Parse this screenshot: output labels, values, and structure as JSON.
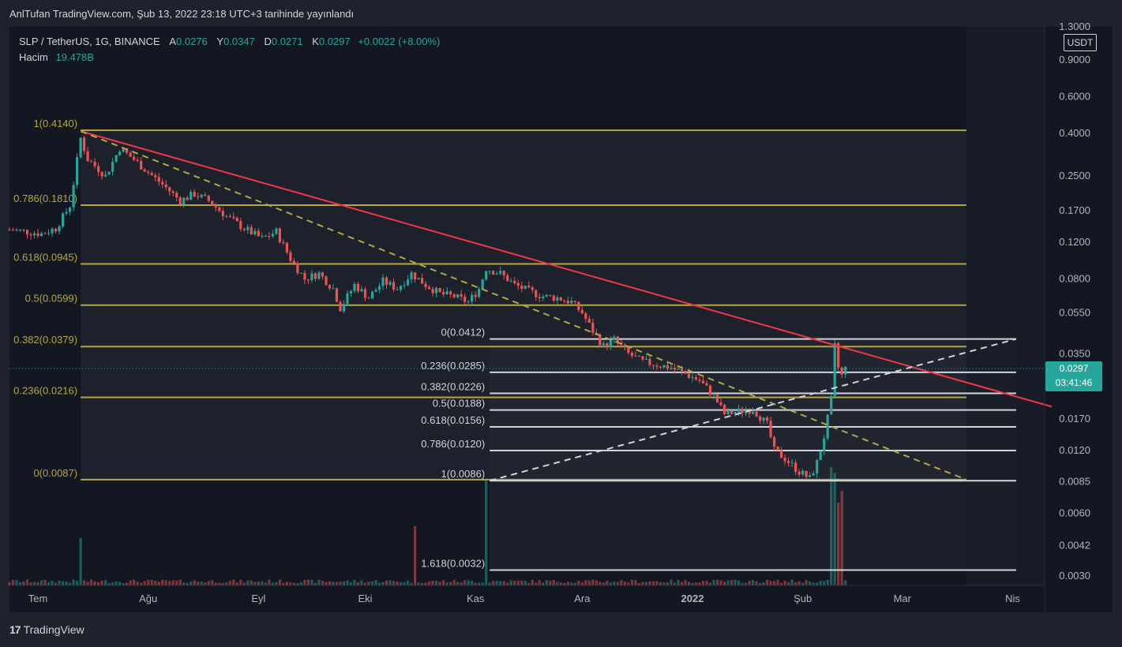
{
  "header": {
    "publication": "AnlTufan TradingView.com, Şub 13, 2022 23:18 UTC+3 tarihinde yayınlandı"
  },
  "legend": {
    "symbol": "SLP / TetherUS, 1G, BINANCE",
    "open_label": "A",
    "open": "0.0276",
    "high_label": "Y",
    "high": "0.0347",
    "low_label": "D",
    "low": "0.0271",
    "close_label": "K",
    "close": "0.0297",
    "change": "+0.0022 (+8.00%)",
    "volume_label": "Hacim",
    "volume": "19.478B"
  },
  "price_axis": {
    "currency": "USDT",
    "last_price": "0.0297",
    "countdown": "03:41:46"
  },
  "brand": {
    "logo": "17",
    "name": "TradingView"
  },
  "colors": {
    "up": "#26a69a",
    "down": "#ef5350",
    "fib_major": "#b5a642",
    "fib_minor": "#d1d4dc",
    "trend": "#f23645"
  },
  "chart_data": {
    "type": "candlestick",
    "scale": "log",
    "ylim": [
      0.0027,
      1.3
    ],
    "xlim": [
      "2021-06-23",
      "2022-04-10"
    ],
    "y_ticks": [
      "1.3000",
      "0.9000",
      "0.6000",
      "0.4000",
      "0.2500",
      "0.1700",
      "0.1200",
      "0.0800",
      "0.0550",
      "0.0350",
      "0.0250",
      "0.0170",
      "0.0120",
      "0.0085",
      "0.0060",
      "0.0042",
      "0.0030"
    ],
    "x_ticks": [
      {
        "label": "Tem",
        "date": "2021-07-01"
      },
      {
        "label": "Ağu",
        "date": "2021-08-01"
      },
      {
        "label": "Eyl",
        "date": "2021-09-01"
      },
      {
        "label": "Eki",
        "date": "2021-10-01"
      },
      {
        "label": "Kas",
        "date": "2021-11-01"
      },
      {
        "label": "Ara",
        "date": "2021-12-01"
      },
      {
        "label": "2022",
        "date": "2022-01-01"
      },
      {
        "label": "Şub",
        "date": "2022-02-01"
      },
      {
        "label": "Mar",
        "date": "2022-03-01"
      },
      {
        "label": "Nis",
        "date": "2022-04-01"
      }
    ],
    "price_path": [
      [
        "2021-06-23",
        0.138
      ],
      [
        "2021-06-28",
        0.135
      ],
      [
        "2021-07-02",
        0.132
      ],
      [
        "2021-07-06",
        0.14
      ],
      [
        "2021-07-10",
        0.18
      ],
      [
        "2021-07-13",
        0.38
      ],
      [
        "2021-07-15",
        0.3
      ],
      [
        "2021-07-18",
        0.27
      ],
      [
        "2021-07-20",
        0.25
      ],
      [
        "2021-07-24",
        0.34
      ],
      [
        "2021-07-28",
        0.3
      ],
      [
        "2021-08-01",
        0.26
      ],
      [
        "2021-08-06",
        0.22
      ],
      [
        "2021-08-10",
        0.19
      ],
      [
        "2021-08-14",
        0.205
      ],
      [
        "2021-08-18",
        0.19
      ],
      [
        "2021-08-23",
        0.16
      ],
      [
        "2021-08-28",
        0.14
      ],
      [
        "2021-09-02",
        0.125
      ],
      [
        "2021-09-06",
        0.135
      ],
      [
        "2021-09-10",
        0.1
      ],
      [
        "2021-09-14",
        0.08
      ],
      [
        "2021-09-18",
        0.085
      ],
      [
        "2021-09-22",
        0.072
      ],
      [
        "2021-09-24",
        0.058
      ],
      [
        "2021-09-28",
        0.075
      ],
      [
        "2021-10-02",
        0.065
      ],
      [
        "2021-10-06",
        0.078
      ],
      [
        "2021-10-10",
        0.072
      ],
      [
        "2021-10-14",
        0.085
      ],
      [
        "2021-10-18",
        0.075
      ],
      [
        "2021-10-22",
        0.068
      ],
      [
        "2021-10-26",
        0.066
      ],
      [
        "2021-10-30",
        0.062
      ],
      [
        "2021-11-02",
        0.072
      ],
      [
        "2021-11-04",
        0.09
      ],
      [
        "2021-11-08",
        0.085
      ],
      [
        "2021-11-12",
        0.075
      ],
      [
        "2021-11-16",
        0.07
      ],
      [
        "2021-11-20",
        0.066
      ],
      [
        "2021-11-24",
        0.065
      ],
      [
        "2021-11-28",
        0.062
      ],
      [
        "2021-12-01",
        0.055
      ],
      [
        "2021-12-04",
        0.045
      ],
      [
        "2021-12-07",
        0.038
      ],
      [
        "2021-12-10",
        0.041
      ],
      [
        "2021-12-14",
        0.035
      ],
      [
        "2021-12-18",
        0.032
      ],
      [
        "2021-12-22",
        0.031
      ],
      [
        "2021-12-26",
        0.03
      ],
      [
        "2021-12-30",
        0.028
      ],
      [
        "2022-01-03",
        0.026
      ],
      [
        "2022-01-07",
        0.022
      ],
      [
        "2022-01-10",
        0.018
      ],
      [
        "2022-01-14",
        0.0185
      ],
      [
        "2022-01-18",
        0.019
      ],
      [
        "2022-01-22",
        0.016
      ],
      [
        "2022-01-24",
        0.012
      ],
      [
        "2022-01-27",
        0.011
      ],
      [
        "2022-01-31",
        0.0095
      ],
      [
        "2022-02-03",
        0.0088
      ],
      [
        "2022-02-05",
        0.0105
      ],
      [
        "2022-02-07",
        0.014
      ],
      [
        "2022-02-09",
        0.021
      ],
      [
        "2022-02-10",
        0.038
      ],
      [
        "2022-02-11",
        0.03
      ],
      [
        "2022-02-12",
        0.0275
      ],
      [
        "2022-02-13",
        0.0297
      ]
    ],
    "volume_spikes": [
      [
        "2021-07-13",
        0.4
      ],
      [
        "2021-10-15",
        0.5
      ],
      [
        "2021-11-04",
        0.9
      ],
      [
        "2022-02-09",
        1.0
      ],
      [
        "2022-02-10",
        0.95
      ],
      [
        "2022-02-11",
        0.7
      ],
      [
        "2022-02-12",
        0.8
      ]
    ],
    "fib_major": {
      "start": "2021-07-13",
      "end": "2022-03-19",
      "levels": [
        {
          "label": "1(0.4140)",
          "price": 0.414
        },
        {
          "label": "0.786(0.1810)",
          "price": 0.181
        },
        {
          "label": "0.618(0.0945)",
          "price": 0.0945
        },
        {
          "label": "0.5(0.0599)",
          "price": 0.0599
        },
        {
          "label": "0.382(0.0379)",
          "price": 0.0379
        },
        {
          "label": "0.236(0.0216)",
          "price": 0.0216
        },
        {
          "label": "0(0.0087)",
          "price": 0.0087
        }
      ]
    },
    "fib_minor": {
      "start": "2021-11-05",
      "end": "2022-04-02",
      "levels": [
        {
          "label": "0(0.0412)",
          "price": 0.0412
        },
        {
          "label": "0.236(0.0285)",
          "price": 0.0285
        },
        {
          "label": "0.382(0.0226)",
          "price": 0.0226
        },
        {
          "label": "0.5(0.0188)",
          "price": 0.0188
        },
        {
          "label": "0.618(0.0156)",
          "price": 0.0156
        },
        {
          "label": "0.786(0.0120)",
          "price": 0.012
        },
        {
          "label": "1(0.0086)",
          "price": 0.0086
        },
        {
          "label": "1.618(0.0032)",
          "price": 0.0032
        }
      ]
    },
    "trendlines": [
      {
        "style": "solid",
        "color": "#f23645",
        "from": [
          "2021-07-13",
          0.41
        ],
        "to": [
          "2022-04-12",
          0.0195
        ]
      },
      {
        "style": "dashed",
        "color": "#b5a642",
        "from": [
          "2021-07-13",
          0.41
        ],
        "to": [
          "2022-03-19",
          0.0087
        ]
      },
      {
        "style": "dashed",
        "color": "#d1d4dc",
        "from": [
          "2021-11-05",
          0.0086
        ],
        "to": [
          "2022-04-02",
          0.0412
        ]
      }
    ],
    "last_price": 0.0297
  }
}
